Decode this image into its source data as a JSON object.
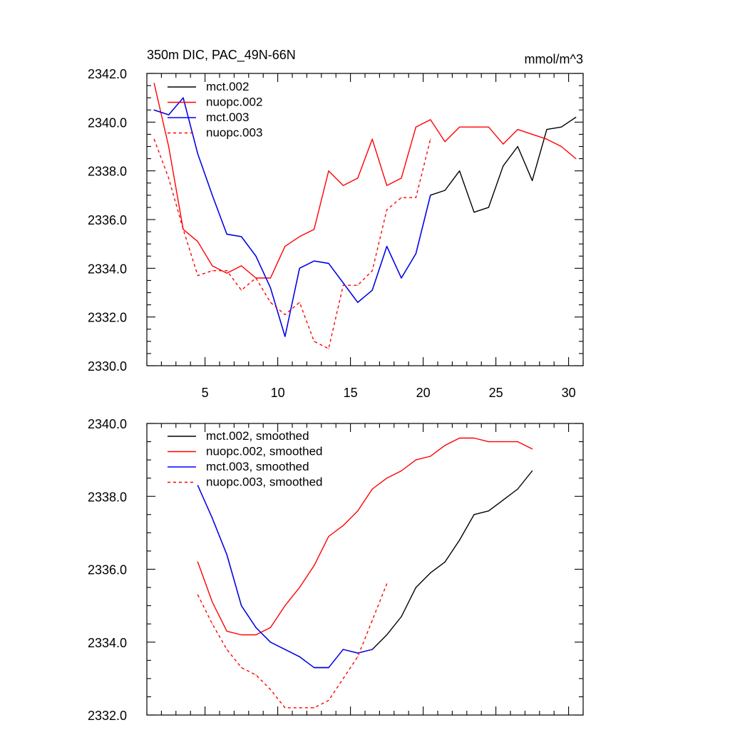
{
  "chart_data": [
    {
      "type": "line",
      "title": "350m DIC, PAC_49N-66N",
      "units": "mmol/m^3",
      "xlim": [
        1,
        31
      ],
      "ylim": [
        2330,
        2342
      ],
      "xticks": [
        5,
        10,
        15,
        20,
        25,
        30
      ],
      "yticks": [
        2330,
        2332,
        2334,
        2336,
        2338,
        2340,
        2342
      ],
      "xticklabels": [
        "5",
        "10",
        "15",
        "20",
        "25",
        "30"
      ],
      "yticklabels": [
        "2330.0",
        "2332.0",
        "2334.0",
        "2336.0",
        "2338.0",
        "2340.0",
        "2342.0"
      ],
      "legend_position": "top-left",
      "series": [
        {
          "name": "mct.002",
          "color": "#000000",
          "dash": "solid",
          "x": [
            1.5,
            2.5,
            3.5,
            4.5,
            5.5,
            6.5,
            7.5,
            8.5,
            9.5,
            10.5,
            11.5,
            12.5,
            13.5,
            14.5,
            15.5,
            16.5,
            17.5,
            18.5,
            19.5,
            20.5,
            21.5,
            22.5,
            23.5,
            24.5,
            25.5,
            26.5,
            27.5,
            28.5,
            29.5,
            30.5
          ],
          "y": [
            2340.5,
            2340.3,
            2341.0,
            2338.7,
            2337.0,
            2335.4,
            2335.3,
            2334.5,
            2333.2,
            2331.2,
            2334.0,
            2334.3,
            2334.2,
            2333.4,
            2332.6,
            2333.1,
            2334.9,
            2333.6,
            2334.6,
            2337.0,
            2337.2,
            2338.0,
            2336.3,
            2336.5,
            2338.2,
            2339.0,
            2337.6,
            2339.7,
            2339.8,
            2340.2
          ]
        },
        {
          "name": "nuopc.002",
          "color": "#ff0000",
          "dash": "solid",
          "x": [
            1.5,
            2.5,
            3.5,
            4.5,
            5.5,
            6.5,
            7.5,
            8.5,
            9.5,
            10.5,
            11.5,
            12.5,
            13.5,
            14.5,
            15.5,
            16.5,
            17.5,
            18.5,
            19.5,
            20.5,
            21.5,
            22.5,
            23.5,
            24.5,
            25.5,
            26.5,
            27.5,
            28.5,
            29.5,
            30.5
          ],
          "y": [
            2341.6,
            2339.0,
            2335.6,
            2335.1,
            2334.1,
            2333.8,
            2334.1,
            2333.6,
            2333.6,
            2334.9,
            2335.3,
            2335.6,
            2338.0,
            2337.4,
            2337.7,
            2339.3,
            2337.4,
            2337.7,
            2339.8,
            2340.1,
            2339.2,
            2339.8,
            2339.8,
            2339.8,
            2339.1,
            2339.7,
            2339.5,
            2339.3,
            2339.0,
            2338.5
          ]
        },
        {
          "name": "mct.003",
          "color": "#0000ff",
          "dash": "solid",
          "x": [
            1.5,
            2.5,
            3.5,
            4.5,
            5.5,
            6.5,
            7.5,
            8.5,
            9.5,
            10.5,
            11.5,
            12.5,
            13.5,
            14.5,
            15.5,
            16.5,
            17.5,
            18.5,
            19.5,
            20.5
          ],
          "y": [
            2340.5,
            2340.3,
            2341.0,
            2338.7,
            2337.0,
            2335.4,
            2335.3,
            2334.5,
            2333.2,
            2331.2,
            2334.0,
            2334.3,
            2334.2,
            2333.4,
            2332.6,
            2333.1,
            2334.9,
            2333.6,
            2334.6,
            2337.0
          ]
        },
        {
          "name": "nuopc.003",
          "color": "#ff0000",
          "dash": "dashed",
          "x": [
            1.5,
            2.5,
            3.5,
            4.5,
            5.5,
            6.5,
            7.5,
            8.5,
            9.5,
            10.5,
            11.5,
            12.5,
            13.5,
            14.5,
            15.5,
            16.5,
            17.5,
            18.5,
            19.5,
            20.5
          ],
          "y": [
            2339.3,
            2337.7,
            2335.6,
            2333.7,
            2333.9,
            2333.9,
            2333.1,
            2333.6,
            2332.6,
            2332.1,
            2332.6,
            2331.0,
            2330.7,
            2333.3,
            2333.3,
            2333.9,
            2336.4,
            2336.9,
            2336.9,
            2339.3
          ]
        }
      ]
    },
    {
      "type": "line",
      "title": "",
      "units": "",
      "xlim": [
        1,
        31
      ],
      "ylim": [
        2332,
        2340
      ],
      "xticks": [
        5,
        10,
        15,
        20,
        25,
        30
      ],
      "yticks": [
        2332,
        2334,
        2336,
        2338,
        2340
      ],
      "xticklabels": [],
      "yticklabels": [
        "2332.0",
        "2334.0",
        "2336.0",
        "2338.0",
        "2340.0"
      ],
      "legend_position": "top-left",
      "series": [
        {
          "name": "mct.002, smoothed",
          "color": "#000000",
          "dash": "solid",
          "x": [
            4.5,
            5.5,
            6.5,
            7.5,
            8.5,
            9.5,
            10.5,
            11.5,
            12.5,
            13.5,
            14.5,
            15.5,
            16.5,
            17.5,
            18.5,
            19.5,
            20.5,
            21.5,
            22.5,
            23.5,
            24.5,
            25.5,
            26.5,
            27.5
          ],
          "y": [
            2338.3,
            2337.4,
            2336.4,
            2335.0,
            2334.4,
            2334.0,
            2333.8,
            2333.6,
            2333.3,
            2333.3,
            2333.8,
            2333.7,
            2333.8,
            2334.2,
            2334.7,
            2335.5,
            2335.9,
            2336.2,
            2336.8,
            2337.5,
            2337.6,
            2337.9,
            2338.2,
            2338.7
          ]
        },
        {
          "name": "nuopc.002, smoothed",
          "color": "#ff0000",
          "dash": "solid",
          "x": [
            4.5,
            5.5,
            6.5,
            7.5,
            8.5,
            9.5,
            10.5,
            11.5,
            12.5,
            13.5,
            14.5,
            15.5,
            16.5,
            17.5,
            18.5,
            19.5,
            20.5,
            21.5,
            22.5,
            23.5,
            24.5,
            25.5,
            26.5,
            27.5
          ],
          "y": [
            2336.2,
            2335.1,
            2334.3,
            2334.2,
            2334.2,
            2334.4,
            2335.0,
            2335.5,
            2336.1,
            2336.9,
            2337.2,
            2337.6,
            2338.2,
            2338.5,
            2338.7,
            2339.0,
            2339.1,
            2339.4,
            2339.6,
            2339.6,
            2339.5,
            2339.5,
            2339.5,
            2339.3
          ]
        },
        {
          "name": "mct.003, smoothed",
          "color": "#0000ff",
          "dash": "solid",
          "x": [
            4.5,
            5.5,
            6.5,
            7.5,
            8.5,
            9.5,
            10.5,
            11.5,
            12.5,
            13.5,
            14.5,
            15.5,
            16.5
          ],
          "y": [
            2338.3,
            2337.4,
            2336.4,
            2335.0,
            2334.4,
            2334.0,
            2333.8,
            2333.6,
            2333.3,
            2333.3,
            2333.8,
            2333.7,
            2333.8
          ]
        },
        {
          "name": "nuopc.003, smoothed",
          "color": "#ff0000",
          "dash": "dashed",
          "x": [
            4.5,
            5.5,
            6.5,
            7.5,
            8.5,
            9.5,
            10.5,
            11.5,
            12.5,
            13.5,
            14.5,
            15.5,
            16.5,
            17.5
          ],
          "y": [
            2335.3,
            2334.5,
            2333.8,
            2333.3,
            2333.1,
            2332.7,
            2332.2,
            2332.2,
            2332.2,
            2332.4,
            2333.0,
            2333.6,
            2334.6,
            2335.6
          ]
        }
      ]
    }
  ]
}
